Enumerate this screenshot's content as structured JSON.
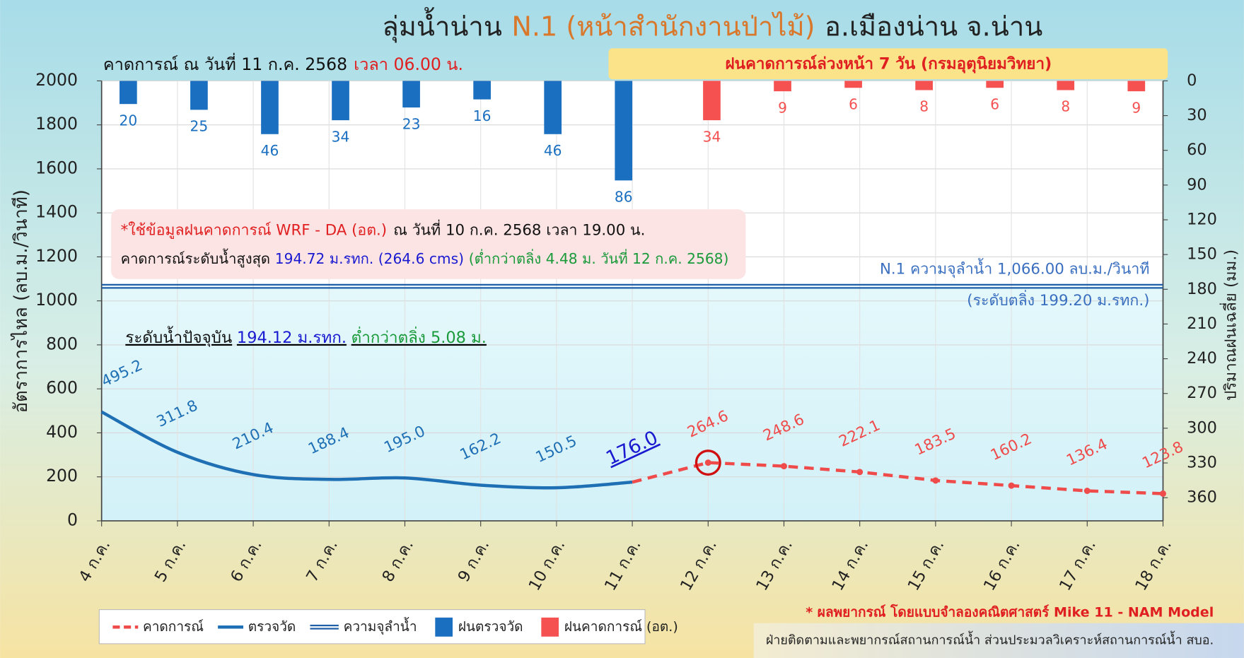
{
  "chart_data": {
    "type": "combo",
    "title": [
      "ลุ่มน้ำน่าน",
      "N.1 (หน้าสำนักงานป่าไม้)",
      "อ.เมืองน่าน จ.น่าน"
    ],
    "subtitle": [
      "คาดการณ์ ณ วันที่ 11 ก.ค. 2568",
      "เวลา 06.00 น."
    ],
    "rain_banner": "ฝนคาดการณ์ล่วงหน้า 7 วัน (กรมอุตุนิยมวิทยา)",
    "ylabel": "อัตราการไหล (ลบ.ม./วินาที)",
    "y2label": "ปริมาณฝนเฉลี่ย (มม.)",
    "categories": [
      "4 ก.ค.",
      "5 ก.ค.",
      "6 ก.ค.",
      "7 ก.ค.",
      "8 ก.ค.",
      "9 ก.ค.",
      "10 ก.ค.",
      "11 ก.ค.",
      "12 ก.ค.",
      "13 ก.ค.",
      "14 ก.ค.",
      "15 ก.ค.",
      "16 ก.ค.",
      "17 ก.ค.",
      "18 ก.ค."
    ],
    "ylim": [
      0,
      2000
    ],
    "yticks": [
      0,
      200,
      400,
      600,
      800,
      1000,
      1200,
      1400,
      1600,
      1800,
      2000
    ],
    "y2lim": [
      0,
      380
    ],
    "y2ticks": [
      0,
      30,
      60,
      90,
      120,
      150,
      180,
      210,
      240,
      270,
      300,
      330,
      360
    ],
    "y2_inverted": true,
    "grid": true,
    "series": [
      {
        "name": "ตรวจวัด",
        "type": "line",
        "color": "#1f6fb4",
        "values": [
          495.2,
          311.8,
          210.4,
          188.4,
          195.0,
          162.2,
          150.5,
          176.0,
          null,
          null,
          null,
          null,
          null,
          null,
          null
        ],
        "value_labels": [
          "495.2",
          "311.8",
          "210.4",
          "188.4",
          "195.0",
          "162.2",
          "150.5",
          "176.0",
          null,
          null,
          null,
          null,
          null,
          null,
          null
        ]
      },
      {
        "name": "คาดการณ์",
        "type": "line",
        "dashed": true,
        "color": "#ef4b4b",
        "values": [
          null,
          null,
          null,
          null,
          null,
          null,
          null,
          176.0,
          264.6,
          248.6,
          222.1,
          183.5,
          160.2,
          136.4,
          123.8
        ],
        "value_labels": [
          null,
          null,
          null,
          null,
          null,
          null,
          null,
          null,
          "264.6",
          "248.6",
          "222.1",
          "183.5",
          "160.2",
          "136.4",
          "123.8"
        ]
      },
      {
        "name": "ฝนตรวจวัด",
        "type": "bar",
        "axis": "y2",
        "color": "#1a6fc0",
        "values": [
          20,
          25,
          46,
          34,
          23,
          16,
          46,
          86,
          null,
          null,
          null,
          null,
          null,
          null,
          null
        ]
      },
      {
        "name": "ฝนคาดการณ์ (อต.)",
        "type": "bar",
        "axis": "y2",
        "color": "#f55151",
        "values": [
          null,
          null,
          null,
          null,
          null,
          null,
          null,
          null,
          34,
          9,
          6,
          8,
          6,
          8,
          9
        ]
      }
    ],
    "capacity": {
      "name": "ความจุลำน้ำ",
      "value": 1066,
      "color": "#1f5fa8",
      "label": "N.1 ความจุลำน้ำ 1,066.00 ลบ.ม./วินาที",
      "note": "(ระดับตลิ่ง 199.20 ม.รทก.)"
    },
    "annotations": {
      "wrf": [
        "*ใช้ข้อมูลฝนคาดการณ์ WRF - DA (อต.)",
        "ณ วันที่ 10 ก.ค. 2568 เวลา 19.00 น."
      ],
      "max_level": [
        "คาดการณ์ระดับน้ำสูงสุด",
        "194.72 ม.รทก. (264.6 cms)",
        "(ต่ำกว่าตลิ่ง 4.48 ม. วันที่ 12 ก.ค. 2568)"
      ],
      "current_level": [
        "ระดับน้ำปัจจุบัน",
        "194.12 ม.รทก.",
        "ต่ำกว่าตลิ่ง 5.08 ม."
      ]
    },
    "footer_note": "* ผลพยากรณ์ โดยแบบจำลองคณิตศาสตร์ Mike 11 - NAM Model",
    "footer_credit": "ฝ่ายติดตามและพยากรณ์สถานการณ์น้ำ ส่วนประมวลวิเคราะห์สถานการณ์น้ำ สบอ."
  }
}
